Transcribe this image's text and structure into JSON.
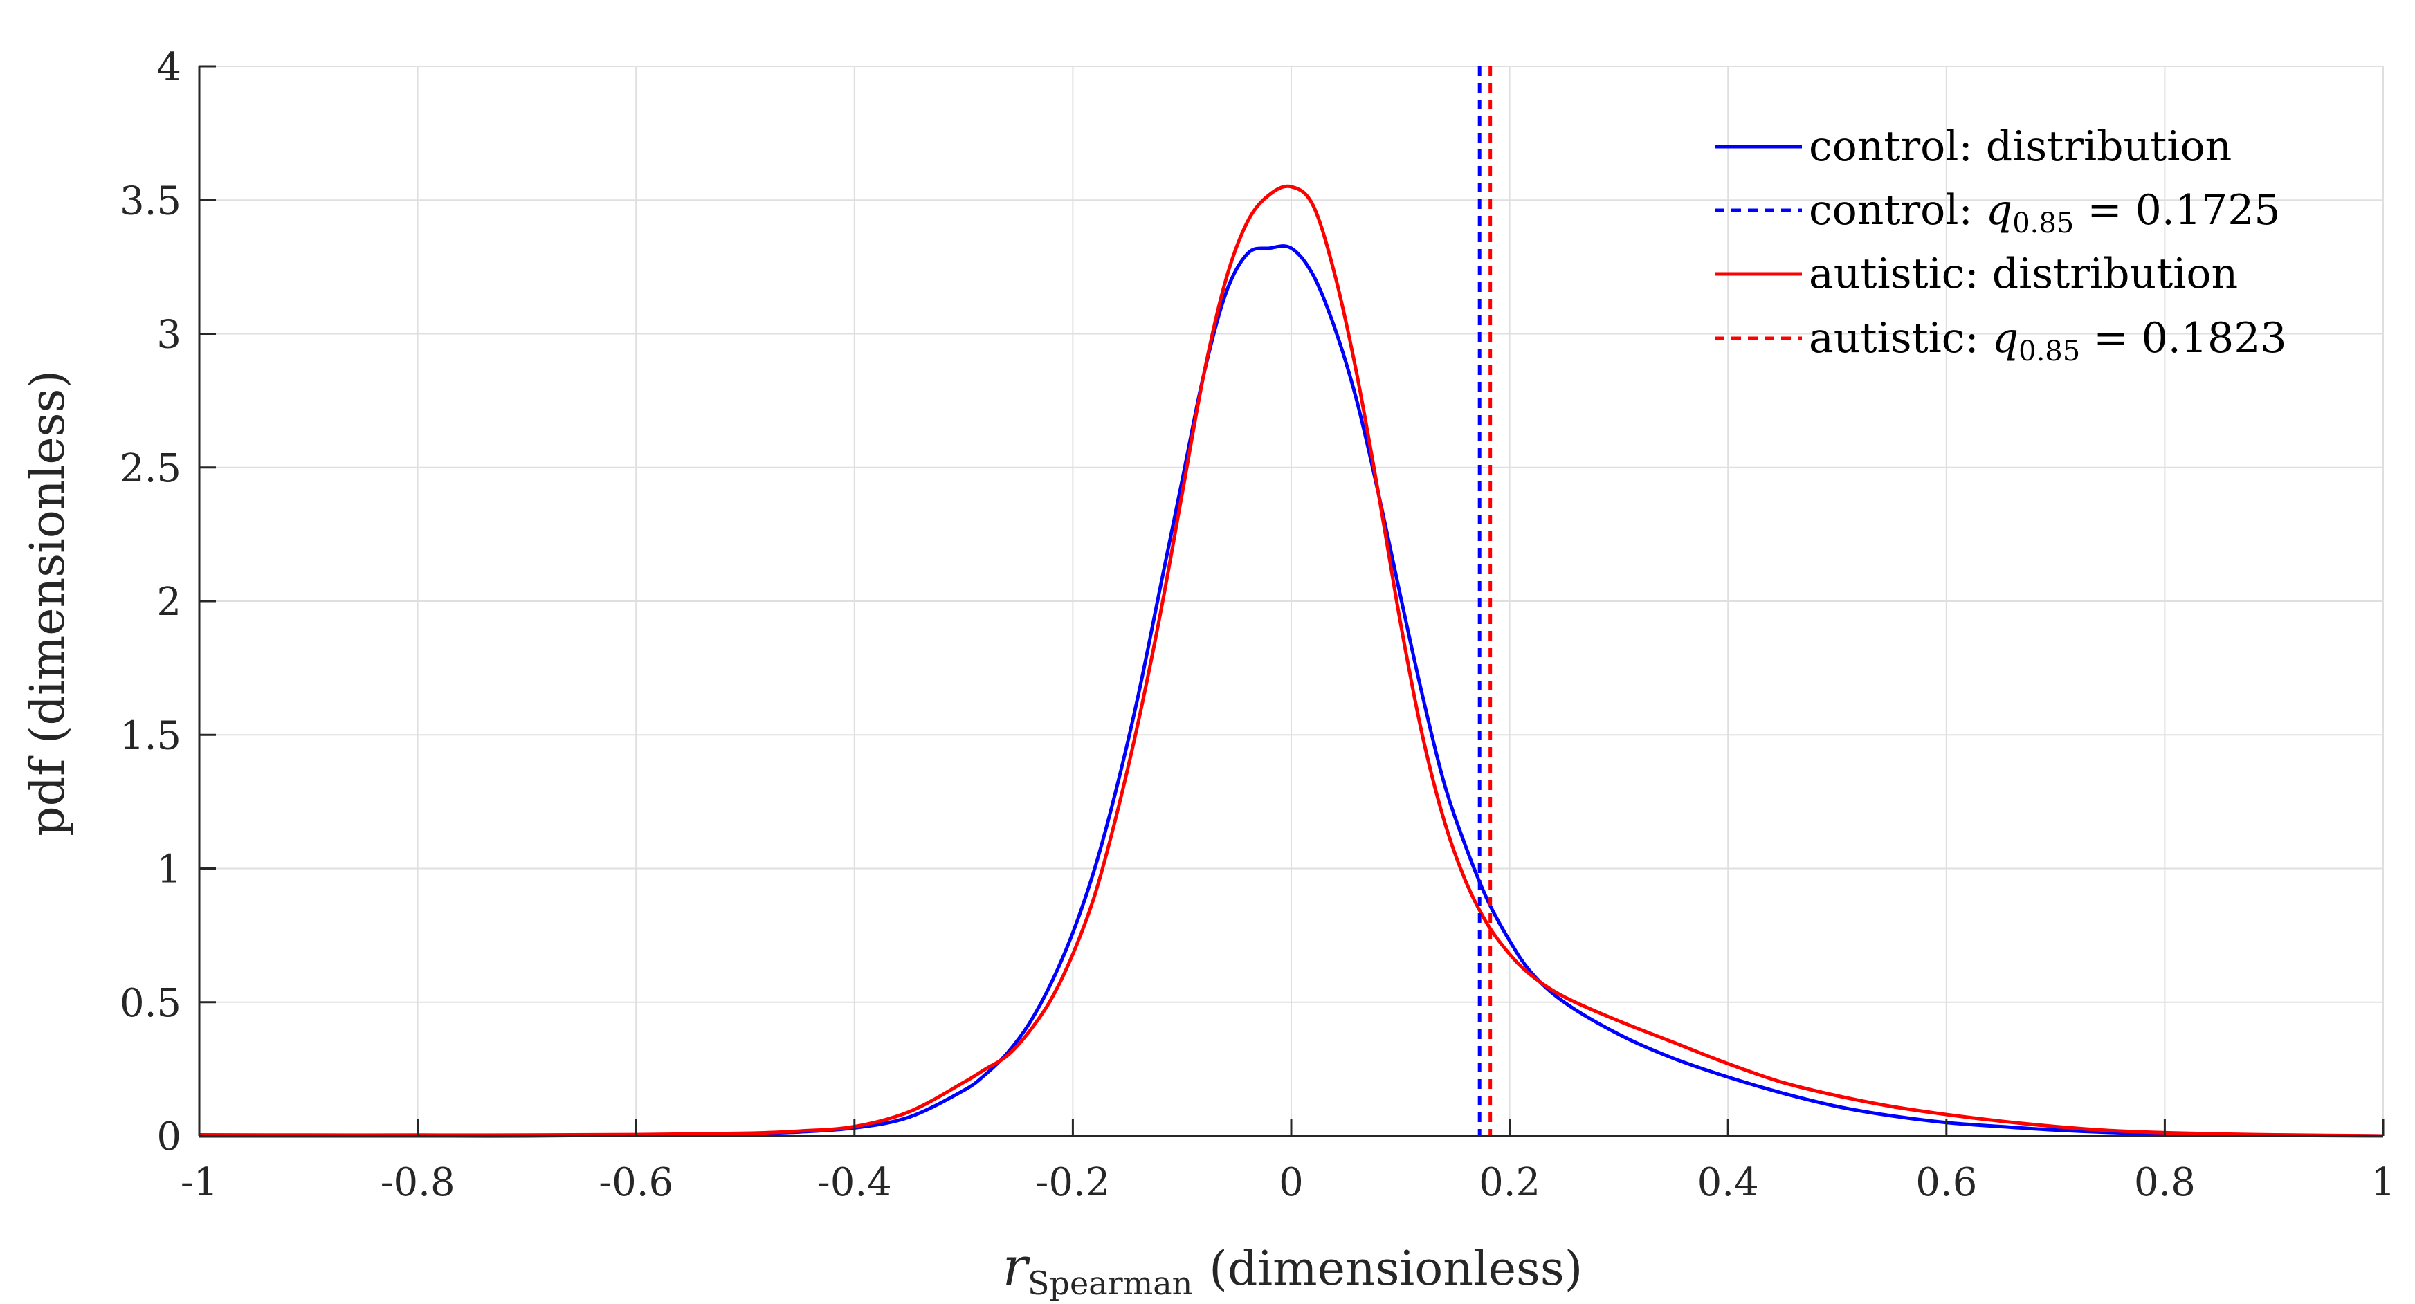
{
  "chart_data": {
    "type": "line",
    "title": "",
    "xlabel_var": "r",
    "xlabel_sub": "Spearman",
    "xlabel_unit": "(dimensionless)",
    "ylabel": "pdf (dimensionless)",
    "xlim": [
      -1,
      1
    ],
    "ylim": [
      0,
      4
    ],
    "grid": true,
    "legend_position": "top-right",
    "xticks": [
      -1,
      -0.8,
      -0.6,
      -0.4,
      -0.2,
      0,
      0.2,
      0.4,
      0.6,
      0.8,
      1
    ],
    "xtick_labels": [
      "-1",
      "-0.8",
      "-0.6",
      "-0.4",
      "-0.2",
      "0",
      "0.2",
      "0.4",
      "0.6",
      "0.8",
      "1"
    ],
    "yticks": [
      0,
      0.5,
      1,
      1.5,
      2,
      2.5,
      3,
      3.5,
      4
    ],
    "ytick_labels": [
      "0",
      "0.5",
      "1",
      "1.5",
      "2",
      "2.5",
      "3",
      "3.5",
      "4"
    ],
    "series": [
      {
        "name": "control: distribution",
        "color": "#0000ff",
        "style": "solid",
        "x": [
          -1,
          -0.9,
          -0.8,
          -0.7,
          -0.6,
          -0.5,
          -0.45,
          -0.4,
          -0.35,
          -0.3,
          -0.28,
          -0.26,
          -0.24,
          -0.22,
          -0.2,
          -0.18,
          -0.16,
          -0.14,
          -0.12,
          -0.1,
          -0.08,
          -0.06,
          -0.04,
          -0.02,
          0,
          0.02,
          0.04,
          0.06,
          0.08,
          0.1,
          0.12,
          0.14,
          0.16,
          0.18,
          0.2,
          0.22,
          0.25,
          0.3,
          0.35,
          0.4,
          0.45,
          0.5,
          0.55,
          0.6,
          0.65,
          0.7,
          0.75,
          0.8,
          0.85,
          0.9,
          0.95,
          1
        ],
        "y": [
          0,
          0,
          0,
          0,
          0.003,
          0.008,
          0.015,
          0.03,
          0.07,
          0.17,
          0.23,
          0.31,
          0.42,
          0.57,
          0.76,
          1.0,
          1.3,
          1.65,
          2.05,
          2.45,
          2.85,
          3.15,
          3.3,
          3.32,
          3.32,
          3.22,
          3.02,
          2.75,
          2.4,
          2.02,
          1.65,
          1.32,
          1.08,
          0.88,
          0.73,
          0.61,
          0.5,
          0.38,
          0.29,
          0.22,
          0.16,
          0.11,
          0.075,
          0.05,
          0.035,
          0.022,
          0.013,
          0.008,
          0.004,
          0.002,
          0.001,
          0
        ]
      },
      {
        "name": "autistic: distribution",
        "color": "#ff0000",
        "style": "solid",
        "x": [
          -1,
          -0.9,
          -0.8,
          -0.7,
          -0.6,
          -0.5,
          -0.45,
          -0.4,
          -0.35,
          -0.3,
          -0.28,
          -0.26,
          -0.24,
          -0.22,
          -0.2,
          -0.18,
          -0.16,
          -0.14,
          -0.12,
          -0.1,
          -0.08,
          -0.06,
          -0.04,
          -0.02,
          0,
          0.02,
          0.04,
          0.06,
          0.08,
          0.1,
          0.12,
          0.14,
          0.16,
          0.18,
          0.2,
          0.22,
          0.25,
          0.3,
          0.35,
          0.4,
          0.45,
          0.5,
          0.55,
          0.6,
          0.65,
          0.7,
          0.75,
          0.8,
          0.85,
          0.9,
          0.95,
          1
        ],
        "y": [
          0.004,
          0.003,
          0.003,
          0.003,
          0.005,
          0.01,
          0.018,
          0.035,
          0.09,
          0.2,
          0.25,
          0.3,
          0.39,
          0.51,
          0.68,
          0.9,
          1.2,
          1.55,
          1.95,
          2.4,
          2.85,
          3.2,
          3.42,
          3.52,
          3.55,
          3.48,
          3.22,
          2.85,
          2.4,
          1.92,
          1.5,
          1.18,
          0.95,
          0.79,
          0.68,
          0.6,
          0.52,
          0.43,
          0.35,
          0.27,
          0.2,
          0.15,
          0.11,
          0.08,
          0.055,
          0.035,
          0.02,
          0.012,
          0.007,
          0.004,
          0.002,
          0
        ]
      }
    ],
    "vlines": [
      {
        "name": "control: q0.85 = 0.1725",
        "x": 0.1725,
        "color": "#0000ff",
        "style": "dashed"
      },
      {
        "name": "autistic: q0.85 = 0.1823",
        "x": 0.1823,
        "color": "#ff0000",
        "style": "dashed"
      }
    ],
    "legend": [
      {
        "label": "control:  distribution",
        "color": "#0000ff",
        "style": "solid"
      },
      {
        "label_prefix": "control:  ",
        "q_symbol": "q",
        "q_subscript": "0.85",
        "q_value": " = 0.1725",
        "color": "#0000ff",
        "style": "dashed"
      },
      {
        "label": "autistic:  distribution",
        "color": "#ff0000",
        "style": "solid"
      },
      {
        "label_prefix": "autistic:  ",
        "q_symbol": "q",
        "q_subscript": "0.85",
        "q_value": " = 0.1823",
        "color": "#ff0000",
        "style": "dashed"
      }
    ]
  }
}
